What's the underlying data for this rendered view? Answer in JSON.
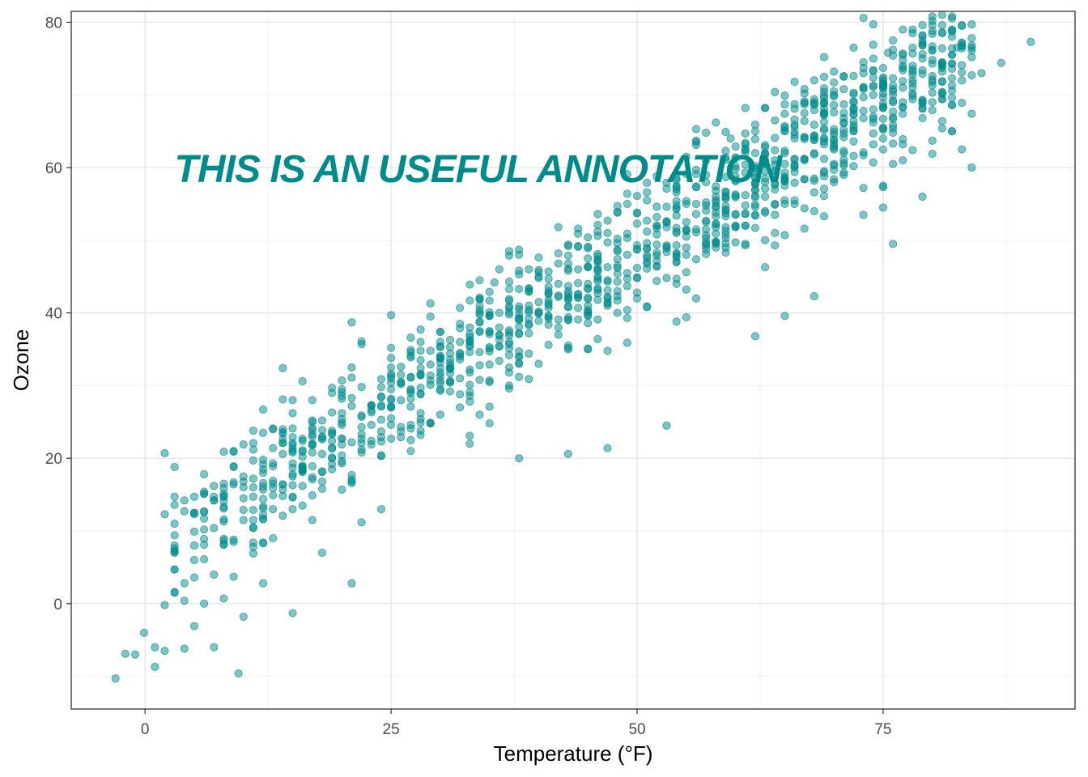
{
  "chart_data": {
    "type": "scatter",
    "title": "",
    "xlabel": "Temperature (°F)",
    "ylabel": "Ozone",
    "xlim": [
      -7.5,
      94.5
    ],
    "ylim": [
      -14.5,
      81.5
    ],
    "x_ticks": [
      0,
      25,
      50,
      75
    ],
    "y_ticks": [
      0,
      20,
      40,
      60,
      80
    ],
    "x_tick_labels": [
      "0",
      "25",
      "50",
      "75"
    ],
    "y_tick_labels": [
      "0",
      "20",
      "40",
      "60",
      "80"
    ],
    "grid": true,
    "legend": "none",
    "point_color": "#008b8b",
    "point_count_approx": 1300,
    "annotation": {
      "text": "THIS IS AN USEFUL ANNOTATION",
      "x": 3,
      "y": 60,
      "color": "#008b8b"
    },
    "series": [
      {
        "values_sample": [
          [
            -3,
            -10.3
          ],
          [
            -2,
            -6.9
          ],
          [
            -1,
            -7.0
          ],
          [
            -0.1,
            -4.0
          ],
          [
            1,
            -6.0
          ],
          [
            1,
            -8.7
          ],
          [
            2,
            -6.5
          ],
          [
            3,
            1.6
          ],
          [
            4,
            0.4
          ],
          [
            5,
            -3.1
          ],
          [
            6,
            0.0
          ],
          [
            7,
            -6.0
          ],
          [
            8,
            0.7
          ],
          [
            9,
            3.7
          ],
          [
            10,
            -1.8
          ],
          [
            9.5,
            -9.6
          ],
          [
            10,
            11.5
          ],
          [
            11,
            17.2
          ],
          [
            12,
            2.8
          ],
          [
            13,
            9.0
          ],
          [
            14,
            22.6
          ],
          [
            15,
            -1.3
          ],
          [
            16,
            16.2
          ],
          [
            17,
            17.4
          ],
          [
            18,
            7.0
          ],
          [
            19,
            23.3
          ],
          [
            20,
            15.7
          ],
          [
            21,
            2.8
          ],
          [
            22,
            11.2
          ],
          [
            24,
            13.0
          ],
          [
            25,
            27.0
          ],
          [
            27,
            21.0
          ],
          [
            29,
            31.4
          ],
          [
            30,
            26.0
          ],
          [
            32,
            34.0
          ],
          [
            33,
            22.0
          ],
          [
            35,
            41.7
          ],
          [
            35.5,
            44.2
          ],
          [
            37,
            30.0
          ],
          [
            38,
            20.0
          ],
          [
            40,
            33.0
          ],
          [
            42,
            38.0
          ],
          [
            43,
            20.6
          ],
          [
            45,
            35.0
          ],
          [
            46,
            47.2
          ],
          [
            47,
            21.4
          ],
          [
            48,
            40.0
          ],
          [
            49,
            48.0
          ],
          [
            50,
            42.0
          ],
          [
            52,
            52.0
          ],
          [
            53,
            24.5
          ],
          [
            55,
            48.0
          ],
          [
            56,
            42.0
          ],
          [
            58,
            56.0
          ],
          [
            59.5,
            64.0
          ],
          [
            60,
            52.0
          ],
          [
            62,
            36.8
          ],
          [
            63,
            50.0
          ],
          [
            64,
            55.0
          ],
          [
            65,
            39.6
          ],
          [
            66,
            60.0
          ],
          [
            68,
            42.3
          ],
          [
            69,
            64.0
          ],
          [
            70,
            58.0
          ],
          [
            72,
            65.0
          ],
          [
            73,
            53.5
          ],
          [
            74,
            68.0
          ],
          [
            75,
            54.5
          ],
          [
            75.5,
            75.8
          ],
          [
            76,
            49.5
          ],
          [
            77,
            69.0
          ],
          [
            78,
            71.0
          ],
          [
            79,
            56.0
          ],
          [
            80,
            63.7
          ],
          [
            81,
            74.0
          ],
          [
            82,
            65.0
          ],
          [
            82.5,
            76.5
          ],
          [
            83,
            62.5
          ],
          [
            84,
            60.0
          ],
          [
            85,
            73.0
          ],
          [
            87,
            74.4
          ],
          [
            90,
            77.3
          ]
        ]
      }
    ]
  }
}
